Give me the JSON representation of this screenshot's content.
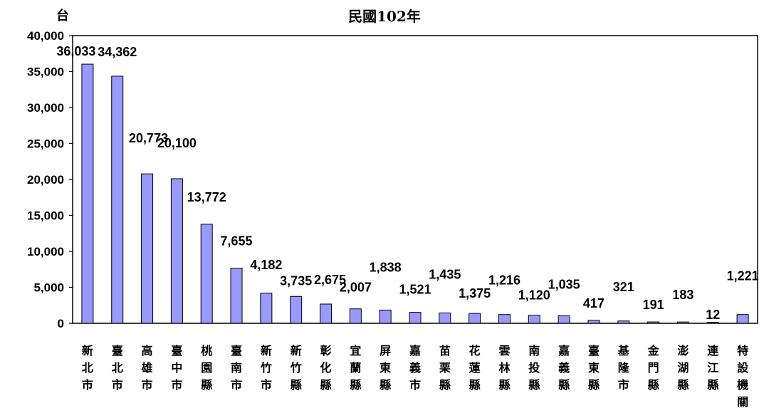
{
  "chart_data": {
    "type": "bar",
    "title": "民國102年",
    "unit_label": "台",
    "ylim": [
      0,
      40000
    ],
    "y_ticks": [
      "0",
      "5,000",
      "10,000",
      "15,000",
      "20,000",
      "25,000",
      "30,000",
      "35,000",
      "40,000"
    ],
    "grid": false,
    "bar_color": "#9999ff",
    "categories": [
      "新北市",
      "臺北市",
      "高雄市",
      "臺中市",
      "桃園縣",
      "臺南市",
      "新竹市",
      "新竹縣",
      "彰化縣",
      "宜蘭縣",
      "屏東縣",
      "嘉義市",
      "苗栗縣",
      "花蓮縣",
      "雲林縣",
      "南投縣",
      "嘉義縣",
      "臺東縣",
      "基隆市",
      "金門縣",
      "澎湖縣",
      "連江縣",
      "特設機關"
    ],
    "values": [
      36033,
      34362,
      20773,
      20100,
      13772,
      7655,
      4182,
      3735,
      2675,
      2007,
      1838,
      1521,
      1435,
      1375,
      1216,
      1120,
      1035,
      417,
      321,
      191,
      183,
      12,
      1221
    ],
    "value_labels": [
      "36,033",
      "34,362",
      "20,773",
      "20,100",
      "13,772",
      "7,655",
      "4,182",
      "3,735",
      "2,675",
      "2,007",
      "1,838",
      "1,521",
      "1,435",
      "1,375",
      "1,216",
      "1,120",
      "1,035",
      "417",
      "321",
      "191",
      "183",
      "12",
      "1,221"
    ]
  }
}
